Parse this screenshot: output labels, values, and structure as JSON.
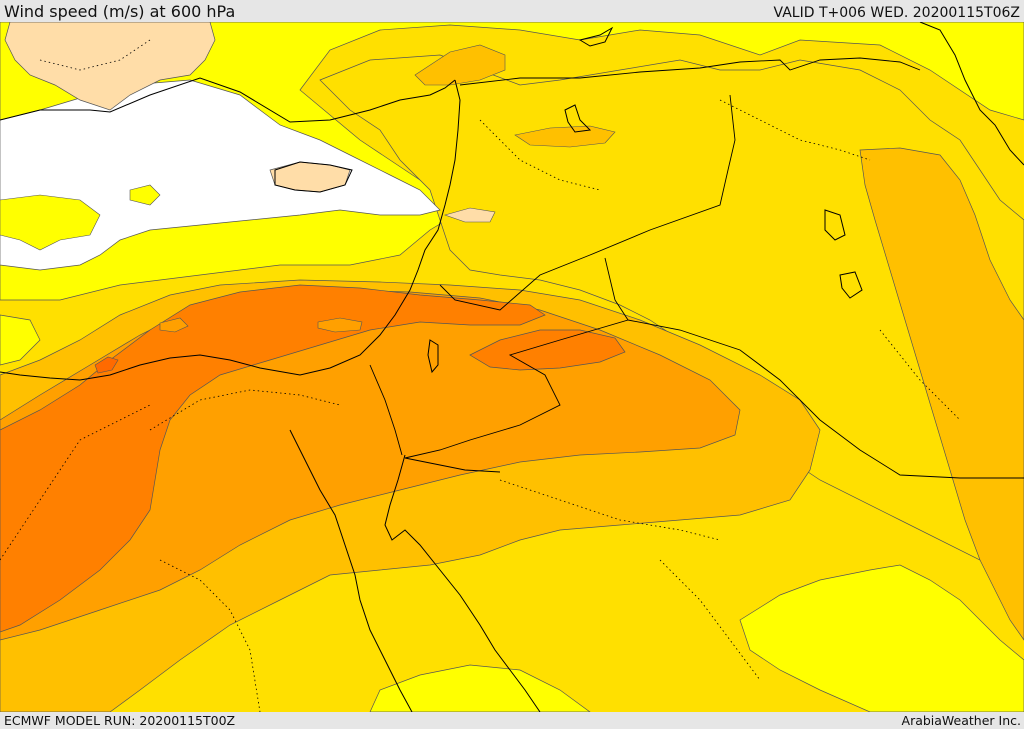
{
  "header": {
    "title": "Wind speed (m/s) at 600 hPa",
    "valid_time": "VALID T+006 WED. 20200115T06Z"
  },
  "footer": {
    "model_run": "ECMWF MODEL RUN: 20200115T00Z",
    "credit": "ArabiaWeather Inc."
  },
  "map": {
    "field": "wind speed",
    "level": "600 hPa",
    "colors": {
      "calm": "#ffffff",
      "light": "#ffdda8",
      "band_1": "#ffff00",
      "band_2": "#ffe000",
      "band_3": "#ffc000",
      "band_4": "#ffa000",
      "band_5": "#ff8000",
      "contour": "#555555",
      "coastline": "#000000",
      "border": "#000000"
    }
  }
}
